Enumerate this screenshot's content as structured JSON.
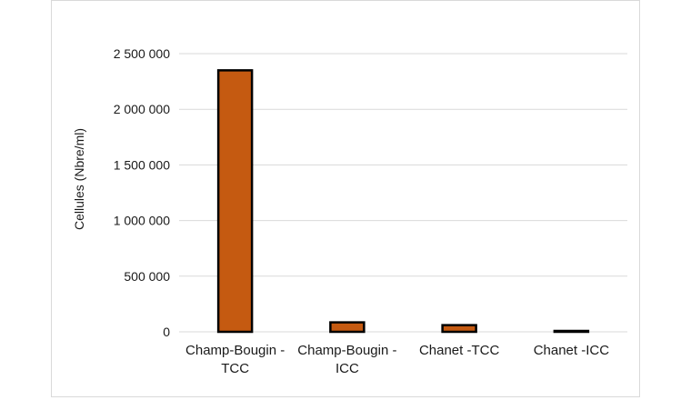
{
  "chart_data": {
    "type": "bar",
    "title": "",
    "xlabel": "",
    "ylabel": "Cellules (Nbre/ml)",
    "ylim": [
      0,
      2500000
    ],
    "y_ticks": [
      0,
      500000,
      1000000,
      1500000,
      2000000,
      2500000
    ],
    "y_tick_labels": [
      "0",
      "500 000",
      "1 000 000",
      "1 500 000",
      "2 000 000",
      "2 500 000"
    ],
    "categories": [
      [
        "Champ-Bougin -",
        "TCC"
      ],
      [
        "Champ-Bougin -",
        "ICC"
      ],
      [
        "Chanet -TCC"
      ],
      [
        "Chanet  -ICC"
      ]
    ],
    "values": [
      2350000,
      85000,
      60000,
      8000
    ],
    "grid": true,
    "bar_color": "#c55a11",
    "bar_edge_color": "#000000",
    "grid_color": "#d9d9d9"
  }
}
